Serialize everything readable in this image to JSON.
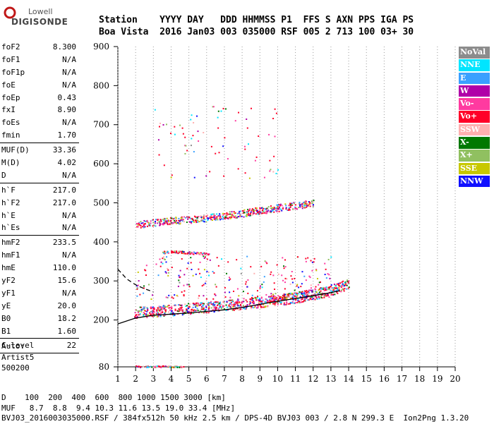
{
  "logo": {
    "brand": "Lowell",
    "product": "DIGISONDE"
  },
  "header": {
    "line1": "Station    YYYY DAY   DDD HHMMSS P1  FFS S AXN PPS IGA PS",
    "line2": "Boa Vista  2016 Jan03 003 035000 RSF 005 2 713 100 03+ 30"
  },
  "params_group1": [
    {
      "k": "foF2",
      "v": "8.300"
    },
    {
      "k": "foF1",
      "v": "N/A"
    },
    {
      "k": "foF1p",
      "v": "N/A"
    },
    {
      "k": "foE",
      "v": "N/A"
    },
    {
      "k": "foEp",
      "v": "0.43"
    },
    {
      "k": "fxI",
      "v": "8.90"
    },
    {
      "k": "foEs",
      "v": "N/A"
    },
    {
      "k": "fmin",
      "v": "1.70"
    }
  ],
  "params_group2": [
    {
      "k": "MUF(D)",
      "v": "33.36"
    },
    {
      "k": "M(D)",
      "v": "4.02"
    },
    {
      "k": "D",
      "v": "N/A"
    }
  ],
  "params_group3": [
    {
      "k": "h`F",
      "v": "217.0"
    },
    {
      "k": "h`F2",
      "v": "217.0"
    },
    {
      "k": "h`E",
      "v": "N/A"
    },
    {
      "k": "h`Es",
      "v": "N/A"
    }
  ],
  "params_group4": [
    {
      "k": "hmF2",
      "v": "233.5"
    },
    {
      "k": "hmF1",
      "v": "N/A"
    },
    {
      "k": "hmE",
      "v": "110.0"
    },
    {
      "k": "yF2",
      "v": "15.6"
    },
    {
      "k": "yF1",
      "v": "N/A"
    },
    {
      "k": "yE",
      "v": "20.0"
    },
    {
      "k": "B0",
      "v": "18.2"
    },
    {
      "k": "B1",
      "v": "1.60"
    }
  ],
  "params_group5": [
    {
      "k": "C-level",
      "v": "22"
    }
  ],
  "auto_note": {
    "line1": "Auto:",
    "line2": "Artist5",
    "line3": "500200"
  },
  "legend": [
    {
      "label": "NoVal",
      "color": "#8c8c8c"
    },
    {
      "label": "NNE",
      "color": "#00e5ff"
    },
    {
      "label": "E",
      "color": "#3aa0ff"
    },
    {
      "label": "W",
      "color": "#b000a8"
    },
    {
      "label": "Vo-",
      "color": "#ff3aa0"
    },
    {
      "label": "Vo+",
      "color": "#ff0028"
    },
    {
      "label": "SSW",
      "color": "#ffb0b0"
    },
    {
      "label": "X-",
      "color": "#007800"
    },
    {
      "label": "X+",
      "color": "#90c060"
    },
    {
      "label": "SSE",
      "color": "#c8c800"
    },
    {
      "label": "NNW",
      "color": "#1010ff"
    }
  ],
  "chart_data": {
    "type": "scatter",
    "x_ticks": [
      1,
      2,
      3,
      4,
      5,
      6,
      7,
      8,
      9,
      10,
      11,
      12,
      13,
      14,
      15,
      16,
      17,
      18,
      19,
      20
    ],
    "y_ticks": [
      80,
      200,
      300,
      400,
      500,
      600,
      700,
      800,
      900
    ],
    "xlim": [
      1,
      20
    ],
    "ylim": [
      80,
      900
    ],
    "grid": "vertical-dotted",
    "traces": [
      {
        "name": "F2 O-trace",
        "points": [
          [
            1.9,
            220
          ],
          [
            2.5,
            222
          ],
          [
            3.5,
            225
          ],
          [
            4.5,
            228
          ],
          [
            5.5,
            232
          ],
          [
            6.5,
            236
          ],
          [
            7.5,
            240
          ],
          [
            8.5,
            245
          ],
          [
            9.5,
            250
          ],
          [
            10.5,
            255
          ],
          [
            11.5,
            262
          ],
          [
            12.5,
            272
          ],
          [
            13.5,
            285
          ],
          [
            14.0,
            295
          ]
        ]
      },
      {
        "name": "F2 2nd hop",
        "points": [
          [
            2.0,
            445
          ],
          [
            3.0,
            450
          ],
          [
            4.0,
            455
          ],
          [
            5.0,
            458
          ],
          [
            6.0,
            462
          ],
          [
            7.0,
            468
          ],
          [
            8.0,
            474
          ],
          [
            9.0,
            482
          ],
          [
            10.0,
            488
          ],
          [
            11.0,
            494
          ],
          [
            12.0,
            500
          ]
        ]
      },
      {
        "name": "Es multiple",
        "points": [
          [
            3.5,
            375
          ],
          [
            4.5,
            375
          ],
          [
            5.5,
            372
          ],
          [
            6.2,
            370
          ]
        ]
      },
      {
        "name": "Low echoes",
        "points": [
          [
            2.0,
            82
          ],
          [
            3.0,
            82
          ],
          [
            4.0,
            82
          ],
          [
            4.7,
            82
          ]
        ]
      }
    ],
    "profile": [
      [
        1.0,
        190
      ],
      [
        2.0,
        205
      ],
      [
        3.0,
        212
      ],
      [
        4.0,
        215
      ],
      [
        5.0,
        218
      ],
      [
        6.0,
        222
      ],
      [
        7.0,
        226
      ],
      [
        8.0,
        232
      ],
      [
        9.0,
        240
      ],
      [
        10.0,
        248
      ],
      [
        11.0,
        255
      ],
      [
        12.0,
        262
      ],
      [
        13.0,
        270
      ],
      [
        13.5,
        275
      ]
    ],
    "x_trace": [
      [
        1.0,
        330
      ],
      [
        1.5,
        305
      ],
      [
        2.0,
        290
      ],
      [
        2.5,
        280
      ],
      [
        3.0,
        272
      ]
    ]
  },
  "footer": {
    "d_row": "D    100  200  400  600  800 1000 1500 3000 [km]",
    "muf_row": "MUF   8.7  8.8  9.4 10.3 11.6 13.5 19.0 33.4 [MHz]",
    "status": "BVJ03_2016003035000.RSF / 384fx512h 50 kHz 2.5 km / DPS-4D BVJ03 003 / 2.8 N 299.3 E  Ion2Png 1.3.20"
  }
}
